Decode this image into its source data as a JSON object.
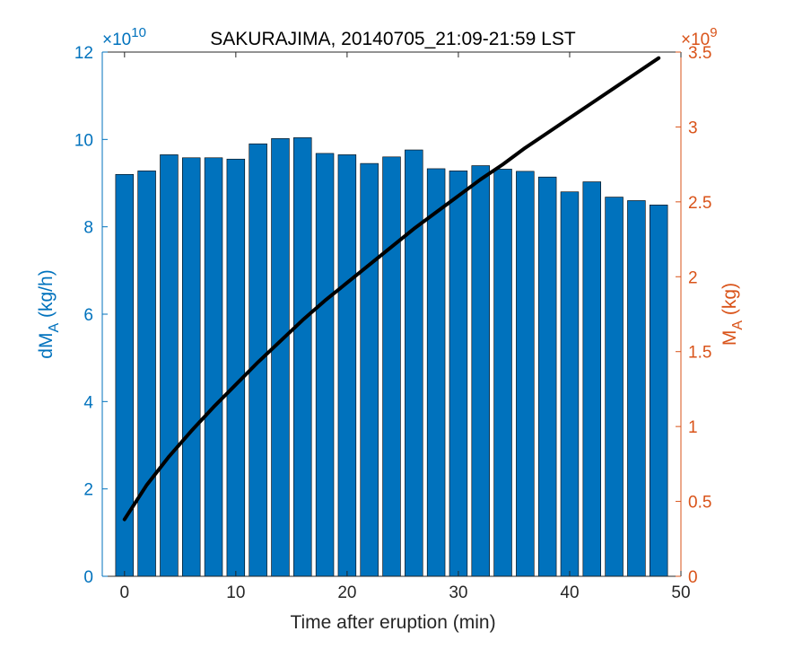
{
  "chart_data": {
    "type": "bar",
    "title": "SAKURAJIMA, 20140705_21:09-21:59 LST",
    "xlabel": "Time after eruption (min)",
    "ylabel_left": {
      "main": "dM",
      "sub": "A",
      "unit": " (kg/h)"
    },
    "ylabel_right": {
      "main": "M",
      "sub": "A",
      "unit": " (kg)"
    },
    "left_multiplier": {
      "base": "×10",
      "exp": "10"
    },
    "right_multiplier": {
      "base": "×10",
      "exp": "9"
    },
    "xlim": [
      -2,
      50
    ],
    "ylim_left": [
      0,
      12
    ],
    "ylim_right": [
      0,
      3.5
    ],
    "x_ticks": [
      0,
      10,
      20,
      30,
      40,
      50
    ],
    "y_ticks_left": [
      0,
      2,
      4,
      6,
      8,
      10,
      12
    ],
    "y_ticks_right": [
      "0",
      "0.5",
      "1",
      "1.5",
      "2",
      "2.5",
      "3",
      "3.5"
    ],
    "y_ticks_right_values": [
      0,
      0.5,
      1,
      1.5,
      2,
      2.5,
      3,
      3.5
    ],
    "colors": {
      "bars": "#0072bd",
      "line": "#000000",
      "right_axis": "#d95319",
      "left_axis": "#0072bd"
    },
    "series": [
      {
        "type": "bar",
        "axis": "left",
        "x": [
          0,
          2,
          4,
          6,
          8,
          10,
          12,
          14,
          16,
          18,
          20,
          22,
          24,
          26,
          28,
          30,
          32,
          34,
          36,
          38,
          40,
          42,
          44,
          46,
          48
        ],
        "values": [
          9.2,
          9.28,
          9.65,
          9.58,
          9.58,
          9.55,
          9.9,
          10.02,
          10.04,
          9.68,
          9.65,
          9.45,
          9.6,
          9.76,
          9.33,
          9.28,
          9.4,
          9.32,
          9.27,
          9.14,
          8.8,
          9.03,
          8.68,
          8.6,
          8.5
        ]
      },
      {
        "type": "line",
        "axis": "right",
        "x": [
          0,
          2,
          4,
          6,
          8,
          10,
          12,
          14,
          16,
          18,
          20,
          22,
          24,
          26,
          28,
          30,
          32,
          34,
          36,
          38,
          40,
          42,
          44,
          46,
          48
        ],
        "values": [
          0.38,
          0.61,
          0.8,
          0.97,
          1.13,
          1.28,
          1.43,
          1.57,
          1.71,
          1.84,
          1.96,
          2.08,
          2.2,
          2.32,
          2.43,
          2.54,
          2.65,
          2.75,
          2.86,
          2.96,
          3.06,
          3.16,
          3.26,
          3.36,
          3.46
        ]
      }
    ]
  }
}
